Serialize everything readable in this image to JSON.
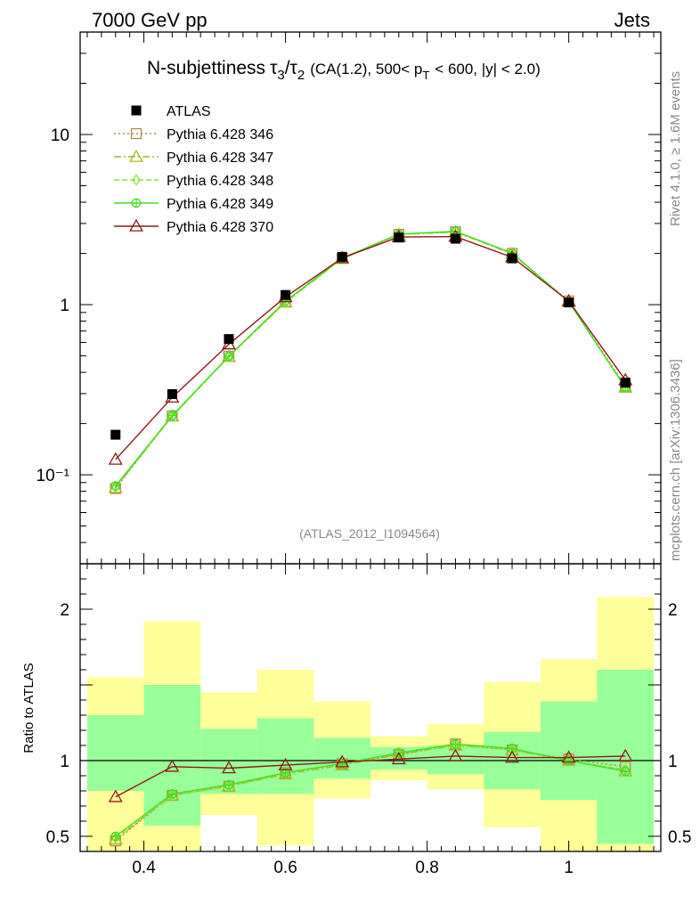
{
  "header": {
    "left": "7000 GeV pp",
    "right": "Jets"
  },
  "title": {
    "main": "N-subjettiness",
    "tau3": "τ",
    "sub3": "3",
    "slash": "/",
    "tau2": "τ",
    "sub2": "2",
    "cuts_a": "(CA(1.2), 500< p",
    "cuts_sub": "T",
    "cuts_b": "< 600, |y| < 2.0)"
  },
  "side_labels": {
    "rivet": "Rivet 4.1.0, ≥ 1.6M events",
    "mcplots": "mcplots.cern.ch [arXiv:1306.3436]"
  },
  "analysis_id": "(ATLAS_2012_I1094564)",
  "ratio_ylabel": "Ratio to ATLAS",
  "chart_data": {
    "type": "line",
    "x": [
      0.36,
      0.44,
      0.52,
      0.6,
      0.68,
      0.76,
      0.84,
      0.92,
      1.0,
      1.08
    ],
    "bin_edges": [
      0.32,
      0.4,
      0.48,
      0.56,
      0.64,
      0.72,
      0.8,
      0.88,
      0.96,
      1.04,
      1.12
    ],
    "xlim": [
      0.31,
      1.13
    ],
    "ylim_main": [
      0.03,
      40
    ],
    "ylim_ratio": [
      0.4,
      2.3
    ],
    "yscale_main": "log",
    "main_ytick_labels": [
      "10",
      "1",
      "10⁻¹"
    ],
    "main_ytick_values": [
      10,
      1,
      0.1
    ],
    "ratio_ytick_labels": [
      "2",
      "1",
      "0.5"
    ],
    "ratio_ytick_values": [
      2,
      1,
      0.5
    ],
    "xtick_labels": [
      "0.4",
      "0.6",
      "0.8",
      "1"
    ],
    "xtick_values": [
      0.4,
      0.6,
      0.8,
      1.0
    ],
    "legend_position": "top-left",
    "data": {
      "name": "ATLAS",
      "color": "#000000",
      "values": [
        0.172,
        0.298,
        0.628,
        1.14,
        1.91,
        2.48,
        2.44,
        1.87,
        1.03,
        0.348
      ]
    },
    "series": [
      {
        "name": "Pythia 6.428 346",
        "color": "#b8864b",
        "marker": "square",
        "dash": "2,3",
        "values": [
          0.083,
          0.222,
          0.497,
          1.04,
          1.87,
          2.59,
          2.68,
          2.0,
          1.05,
          0.333
        ],
        "ratio": [
          0.47,
          0.77,
          0.83,
          0.92,
          0.98,
          1.04,
          1.11,
          1.07,
          1.01,
          0.96
        ]
      },
      {
        "name": "Pythia 6.428 347",
        "color": "#a8b820",
        "marker": "triangle",
        "dash": "8,3,2,3",
        "values": [
          0.084,
          0.221,
          0.495,
          1.03,
          1.86,
          2.58,
          2.67,
          1.99,
          1.04,
          0.326
        ],
        "ratio": [
          0.48,
          0.77,
          0.83,
          0.91,
          0.97,
          1.04,
          1.1,
          1.07,
          1.0,
          0.93
        ]
      },
      {
        "name": "Pythia 6.428 348",
        "color": "#90e040",
        "marker": "diamond",
        "dash": "6,3",
        "values": [
          0.085,
          0.22,
          0.496,
          1.04,
          1.87,
          2.59,
          2.69,
          2.0,
          1.04,
          0.327
        ],
        "ratio": [
          0.49,
          0.77,
          0.83,
          0.92,
          0.98,
          1.05,
          1.1,
          1.07,
          1.0,
          0.94
        ]
      },
      {
        "name": "Pythia 6.428 349",
        "color": "#40e020",
        "marker": "circleplus",
        "dash": "",
        "values": [
          0.086,
          0.223,
          0.498,
          1.05,
          1.88,
          2.6,
          2.7,
          2.01,
          1.04,
          0.325
        ],
        "ratio": [
          0.5,
          0.78,
          0.84,
          0.92,
          0.98,
          1.05,
          1.11,
          1.08,
          1.0,
          0.93
        ]
      },
      {
        "name": "Pythia 6.428 370",
        "color": "#8b1a1a",
        "marker": "triangle",
        "dash": "",
        "values": [
          0.123,
          0.285,
          0.585,
          1.11,
          1.88,
          2.5,
          2.51,
          1.9,
          1.05,
          0.36
        ],
        "ratio": [
          0.76,
          0.96,
          0.95,
          0.97,
          0.99,
          1.01,
          1.03,
          1.02,
          1.02,
          1.03
        ]
      }
    ],
    "uncertainty_bands": {
      "inner_color": "#99ff99",
      "outer_color": "#ffff99",
      "inner_low": [
        0.8,
        0.57,
        0.78,
        0.78,
        0.88,
        0.94,
        0.91,
        0.81,
        0.74,
        0.45
      ],
      "inner_high": [
        1.3,
        1.5,
        1.21,
        1.28,
        1.15,
        1.09,
        1.1,
        1.19,
        1.39,
        1.6
      ],
      "outer_low": [
        0.4,
        0.4,
        0.64,
        0.44,
        0.75,
        0.87,
        0.81,
        0.56,
        0.4,
        0.4
      ],
      "outer_high": [
        1.55,
        1.92,
        1.45,
        1.6,
        1.39,
        1.16,
        1.24,
        1.52,
        1.67,
        2.08
      ]
    }
  }
}
